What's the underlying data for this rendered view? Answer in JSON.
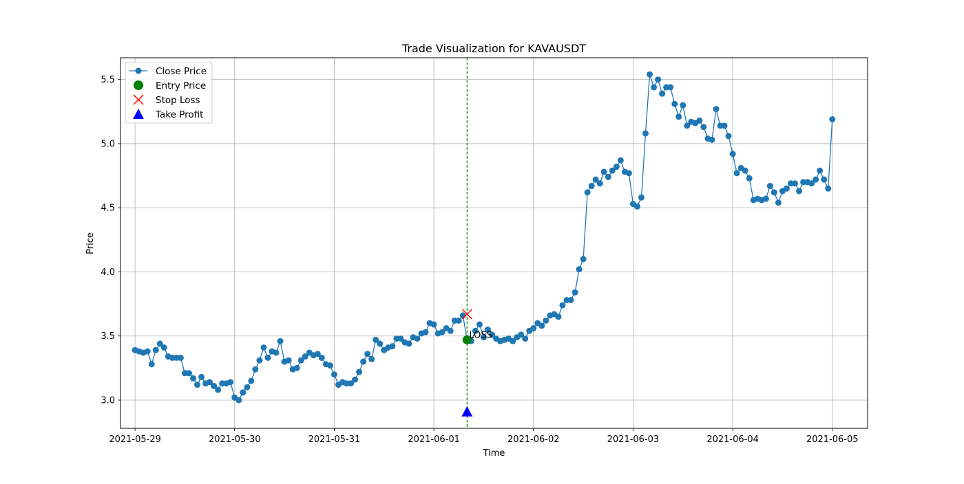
{
  "chart_data": {
    "type": "line",
    "title": "Trade Visualization for KAVAUSDT",
    "xlabel": "Time",
    "ylabel": "Price",
    "x_range": [
      "2021-05-28T20:30",
      "2021-06-05T08:30"
    ],
    "ylim": [
      2.78,
      5.67
    ],
    "grid": true,
    "legend_position": "top-left",
    "x_tick_labels": [
      "2021-05-29",
      "2021-05-30",
      "2021-05-31",
      "2021-06-01",
      "2021-06-02",
      "2021-06-03",
      "2021-06-04",
      "2021-06-05"
    ],
    "y_tick_values": [
      3.0,
      3.5,
      4.0,
      4.5,
      5.0,
      5.5
    ],
    "y_tick_labels": [
      "3.0",
      "3.5",
      "4.0",
      "4.5",
      "5.0",
      "5.5"
    ],
    "series": [
      {
        "name": "Close Price",
        "color": "#1f77b4",
        "start": "2021-05-29T00:00",
        "interval_hours": 1,
        "values": [
          3.39,
          3.38,
          3.37,
          3.38,
          3.28,
          3.39,
          3.44,
          3.41,
          3.34,
          3.33,
          3.33,
          3.33,
          3.21,
          3.21,
          3.17,
          3.12,
          3.18,
          3.13,
          3.14,
          3.11,
          3.08,
          3.13,
          3.13,
          3.14,
          3.02,
          3.0,
          3.06,
          3.1,
          3.15,
          3.24,
          3.31,
          3.41,
          3.33,
          3.38,
          3.37,
          3.46,
          3.3,
          3.31,
          3.24,
          3.25,
          3.31,
          3.34,
          3.37,
          3.35,
          3.36,
          3.33,
          3.28,
          3.27,
          3.2,
          3.12,
          3.14,
          3.13,
          3.13,
          3.16,
          3.22,
          3.3,
          3.36,
          3.32,
          3.47,
          3.44,
          3.39,
          3.41,
          3.42,
          3.48,
          3.48,
          3.45,
          3.44,
          3.49,
          3.48,
          3.52,
          3.53,
          3.6,
          3.59,
          3.52,
          3.53,
          3.56,
          3.54,
          3.62,
          3.62,
          3.66,
          3.47,
          3.46,
          3.54,
          3.59,
          3.49,
          3.55,
          3.51,
          3.48,
          3.46,
          3.47,
          3.48,
          3.46,
          3.49,
          3.51,
          3.48,
          3.54,
          3.56,
          3.6,
          3.58,
          3.62,
          3.66,
          3.67,
          3.65,
          3.74,
          3.78,
          3.78,
          3.84,
          4.02,
          4.1,
          4.62,
          4.67,
          4.72,
          4.69,
          4.78,
          4.74,
          4.79,
          4.82,
          4.87,
          4.78,
          4.77,
          4.53,
          4.51,
          4.58,
          5.08,
          5.54,
          5.44,
          5.5,
          5.39,
          5.44,
          5.44,
          5.31,
          5.21,
          5.3,
          5.14,
          5.17,
          5.16,
          5.18,
          5.13,
          5.04,
          5.03,
          5.27,
          5.14,
          5.14,
          5.06,
          4.92,
          4.77,
          4.81,
          4.79,
          4.73,
          4.56,
          4.57,
          4.56,
          4.57,
          4.67,
          4.62,
          4.54,
          4.63,
          4.65,
          4.69,
          4.69,
          4.63,
          4.7,
          4.7,
          4.69,
          4.72,
          4.79,
          4.72,
          4.65,
          5.19
        ]
      }
    ],
    "markers": [
      {
        "name": "Entry Price",
        "shape": "circle",
        "color": "#008000",
        "x": "2021-06-01T08:00",
        "y": 3.47
      },
      {
        "name": "Stop Loss",
        "shape": "x",
        "color": "#ff0000",
        "x": "2021-06-01T08:00",
        "y": 3.67
      },
      {
        "name": "Take Profit",
        "shape": "triangle",
        "color": "#0000ff",
        "x": "2021-06-01T08:00",
        "y": 2.91
      }
    ],
    "vline": {
      "x": "2021-06-01T08:00",
      "color": "#008000",
      "style": "dashed"
    },
    "annotations": [
      {
        "text": "LOSS",
        "x": "2021-06-01T08:00",
        "y": 3.47
      }
    ]
  }
}
